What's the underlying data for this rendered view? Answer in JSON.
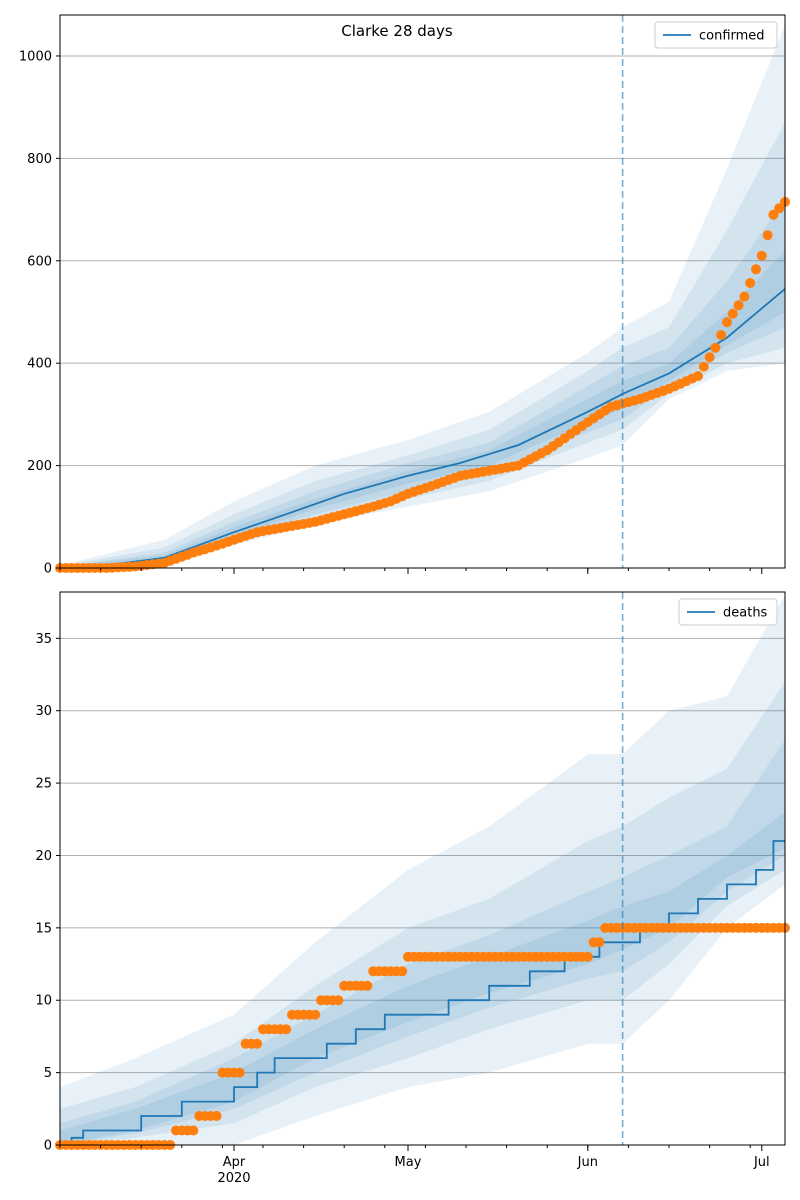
{
  "figure": {
    "title": "Clarke 28 days"
  },
  "chart_data": [
    {
      "type": "line",
      "name": "confirmed-panel",
      "title": "Clarke 28 days",
      "xlim": [
        "2020-03-02",
        "2020-07-05"
      ],
      "ylim": [
        0,
        1080
      ],
      "yticks": [
        0,
        200,
        400,
        600,
        800,
        1000
      ],
      "grid": true,
      "legend": {
        "position": "top-right",
        "entries": [
          "confirmed"
        ]
      },
      "vline": "2020-06-07",
      "series": [
        {
          "name": "confirmed",
          "kind": "line",
          "x": [
            "2020-03-02",
            "2020-03-10",
            "2020-03-20",
            "2020-04-01",
            "2020-04-10",
            "2020-04-20",
            "2020-05-01",
            "2020-05-10",
            "2020-05-20",
            "2020-06-01",
            "2020-06-07",
            "2020-06-15",
            "2020-06-25",
            "2020-07-05"
          ],
          "y": [
            0,
            5,
            20,
            70,
            105,
            145,
            180,
            205,
            240,
            305,
            340,
            380,
            450,
            545
          ]
        },
        {
          "name": "observed",
          "kind": "scatter",
          "x": [
            "2020-03-02",
            "2020-03-10",
            "2020-03-15",
            "2020-03-20",
            "2020-03-25",
            "2020-03-28",
            "2020-04-01",
            "2020-04-05",
            "2020-04-10",
            "2020-04-15",
            "2020-04-20",
            "2020-04-25",
            "2020-04-28",
            "2020-05-01",
            "2020-05-05",
            "2020-05-10",
            "2020-05-15",
            "2020-05-20",
            "2020-05-25",
            "2020-06-01",
            "2020-06-05",
            "2020-06-10",
            "2020-06-15",
            "2020-06-20",
            "2020-06-23",
            "2020-06-25",
            "2020-06-28",
            "2020-07-01",
            "2020-07-03",
            "2020-07-05"
          ],
          "y": [
            0,
            0,
            3,
            10,
            30,
            40,
            55,
            70,
            80,
            90,
            105,
            120,
            130,
            145,
            160,
            180,
            190,
            200,
            230,
            285,
            315,
            330,
            350,
            375,
            430,
            480,
            530,
            610,
            690,
            715
          ]
        }
      ],
      "bands": [
        {
          "x": [
            "2020-03-02",
            "2020-03-20",
            "2020-04-01",
            "2020-04-15",
            "2020-05-01",
            "2020-05-15",
            "2020-06-01",
            "2020-06-07",
            "2020-06-15",
            "2020-06-25",
            "2020-07-05"
          ],
          "lower": [
            0,
            10,
            45,
            85,
            120,
            150,
            215,
            240,
            330,
            385,
            400
          ],
          "upper": [
            5,
            55,
            130,
            200,
            250,
            305,
            420,
            470,
            520,
            780,
            1060
          ]
        },
        {
          "x": [
            "2020-03-02",
            "2020-03-20",
            "2020-04-01",
            "2020-04-15",
            "2020-05-01",
            "2020-05-15",
            "2020-06-01",
            "2020-06-07",
            "2020-06-15",
            "2020-06-25",
            "2020-07-05"
          ],
          "lower": [
            0,
            13,
            52,
            95,
            135,
            170,
            245,
            270,
            340,
            400,
            430
          ],
          "upper": [
            4,
            40,
            105,
            170,
            220,
            270,
            385,
            430,
            470,
            660,
            870
          ]
        },
        {
          "x": [
            "2020-03-02",
            "2020-03-20",
            "2020-04-01",
            "2020-04-15",
            "2020-05-01",
            "2020-05-15",
            "2020-06-01",
            "2020-06-07",
            "2020-06-15",
            "2020-06-25",
            "2020-07-05"
          ],
          "lower": [
            0,
            15,
            58,
            105,
            150,
            185,
            265,
            290,
            355,
            420,
            470
          ],
          "upper": [
            3,
            30,
            90,
            150,
            205,
            245,
            355,
            395,
            430,
            560,
            720
          ]
        },
        {
          "x": [
            "2020-03-02",
            "2020-03-20",
            "2020-04-01",
            "2020-04-15",
            "2020-05-01",
            "2020-05-15",
            "2020-06-01",
            "2020-06-07",
            "2020-06-15",
            "2020-06-25",
            "2020-07-05"
          ],
          "lower": [
            0,
            17,
            62,
            115,
            165,
            200,
            285,
            310,
            365,
            435,
            500
          ],
          "upper": [
            2,
            25,
            80,
            135,
            190,
            230,
            330,
            365,
            400,
            500,
            620
          ]
        }
      ]
    },
    {
      "type": "line",
      "name": "deaths-panel",
      "xlim": [
        "2020-03-02",
        "2020-07-05"
      ],
      "ylim": [
        0,
        38.2
      ],
      "yticks": [
        0,
        5,
        10,
        15,
        20,
        25,
        30,
        35
      ],
      "xticks": [
        {
          "date": "2020-04-01",
          "label": "Apr",
          "sublabel": "2020"
        },
        {
          "date": "2020-05-01",
          "label": "May"
        },
        {
          "date": "2020-06-01",
          "label": "Jun"
        },
        {
          "date": "2020-07-01",
          "label": "Jul"
        }
      ],
      "grid": true,
      "legend": {
        "position": "top-right",
        "entries": [
          "deaths"
        ]
      },
      "vline": "2020-06-07",
      "series": [
        {
          "name": "deaths",
          "kind": "step",
          "x": [
            "2020-03-02",
            "2020-03-04",
            "2020-03-06",
            "2020-03-16",
            "2020-03-23",
            "2020-03-28",
            "2020-04-01",
            "2020-04-05",
            "2020-04-08",
            "2020-04-12",
            "2020-04-17",
            "2020-04-22",
            "2020-04-27",
            "2020-05-01",
            "2020-05-08",
            "2020-05-15",
            "2020-05-22",
            "2020-05-28",
            "2020-06-03",
            "2020-06-10",
            "2020-06-15",
            "2020-06-20",
            "2020-06-25",
            "2020-06-30",
            "2020-07-03",
            "2020-07-05"
          ],
          "y": [
            0,
            0.5,
            1,
            2,
            3,
            3,
            4,
            5,
            6,
            6,
            7,
            8,
            9,
            9,
            10,
            11,
            12,
            13,
            14,
            15,
            16,
            17,
            18,
            19,
            21,
            21
          ]
        },
        {
          "name": "observed",
          "kind": "scatter",
          "x": [
            "2020-03-02",
            "2020-03-10",
            "2020-03-20",
            "2020-03-22",
            "2020-03-24",
            "2020-03-26",
            "2020-03-28",
            "2020-03-30",
            "2020-04-01",
            "2020-04-03",
            "2020-04-06",
            "2020-04-09",
            "2020-04-11",
            "2020-04-13",
            "2020-04-16",
            "2020-04-20",
            "2020-04-25",
            "2020-05-01",
            "2020-05-10",
            "2020-05-20",
            "2020-05-30",
            "2020-06-02",
            "2020-06-04",
            "2020-06-08",
            "2020-06-15",
            "2020-06-25",
            "2020-07-05"
          ],
          "y": [
            0,
            0,
            0,
            1,
            1,
            2,
            2,
            5,
            5,
            7,
            8,
            8,
            9,
            9,
            10,
            11,
            12,
            13,
            13,
            13,
            13,
            14,
            15,
            15,
            15,
            15,
            15
          ]
        }
      ],
      "bands": [
        {
          "x": [
            "2020-03-02",
            "2020-03-15",
            "2020-04-01",
            "2020-04-15",
            "2020-05-01",
            "2020-05-15",
            "2020-06-01",
            "2020-06-07",
            "2020-06-15",
            "2020-06-25",
            "2020-07-05"
          ],
          "lower": [
            0,
            0,
            0,
            2,
            4,
            5,
            7,
            7,
            10,
            15,
            18
          ],
          "upper": [
            4,
            6,
            9,
            14,
            19,
            22,
            27,
            27,
            30,
            31,
            38
          ]
        },
        {
          "x": [
            "2020-03-02",
            "2020-03-15",
            "2020-04-01",
            "2020-04-15",
            "2020-05-01",
            "2020-05-15",
            "2020-06-01",
            "2020-06-07",
            "2020-06-15",
            "2020-06-25",
            "2020-07-05"
          ],
          "lower": [
            0,
            0.5,
            1.5,
            4,
            6,
            8,
            10,
            10,
            12.5,
            16.5,
            19
          ],
          "upper": [
            2.5,
            4,
            7,
            11,
            15,
            17,
            21,
            22,
            24,
            26,
            32
          ]
        },
        {
          "x": [
            "2020-03-02",
            "2020-03-15",
            "2020-04-01",
            "2020-04-15",
            "2020-05-01",
            "2020-05-15",
            "2020-06-01",
            "2020-06-07",
            "2020-06-15",
            "2020-06-25",
            "2020-07-05"
          ],
          "lower": [
            0,
            0.8,
            2.5,
            5,
            7.5,
            9.5,
            11.5,
            12,
            14,
            17.5,
            20
          ],
          "upper": [
            1.5,
            3,
            6,
            9,
            12.5,
            14.5,
            17.5,
            18.5,
            20,
            22,
            28
          ]
        },
        {
          "x": [
            "2020-03-02",
            "2020-03-15",
            "2020-04-01",
            "2020-04-15",
            "2020-05-01",
            "2020-05-15",
            "2020-06-01",
            "2020-06-07",
            "2020-06-15",
            "2020-06-25",
            "2020-07-05"
          ],
          "lower": [
            0,
            1,
            3,
            6,
            8.5,
            10.5,
            12.5,
            13.5,
            15,
            18.5,
            20.5
          ],
          "upper": [
            1,
            2.5,
            5,
            8,
            11,
            13,
            15.5,
            16.5,
            17.5,
            20,
            23
          ]
        }
      ]
    }
  ],
  "colors": {
    "line": "#1f77b4",
    "scatter": "#ff7f0e",
    "band": "#1f77b4",
    "grid": "#b0b0b0",
    "vline": "#1f77b4"
  }
}
